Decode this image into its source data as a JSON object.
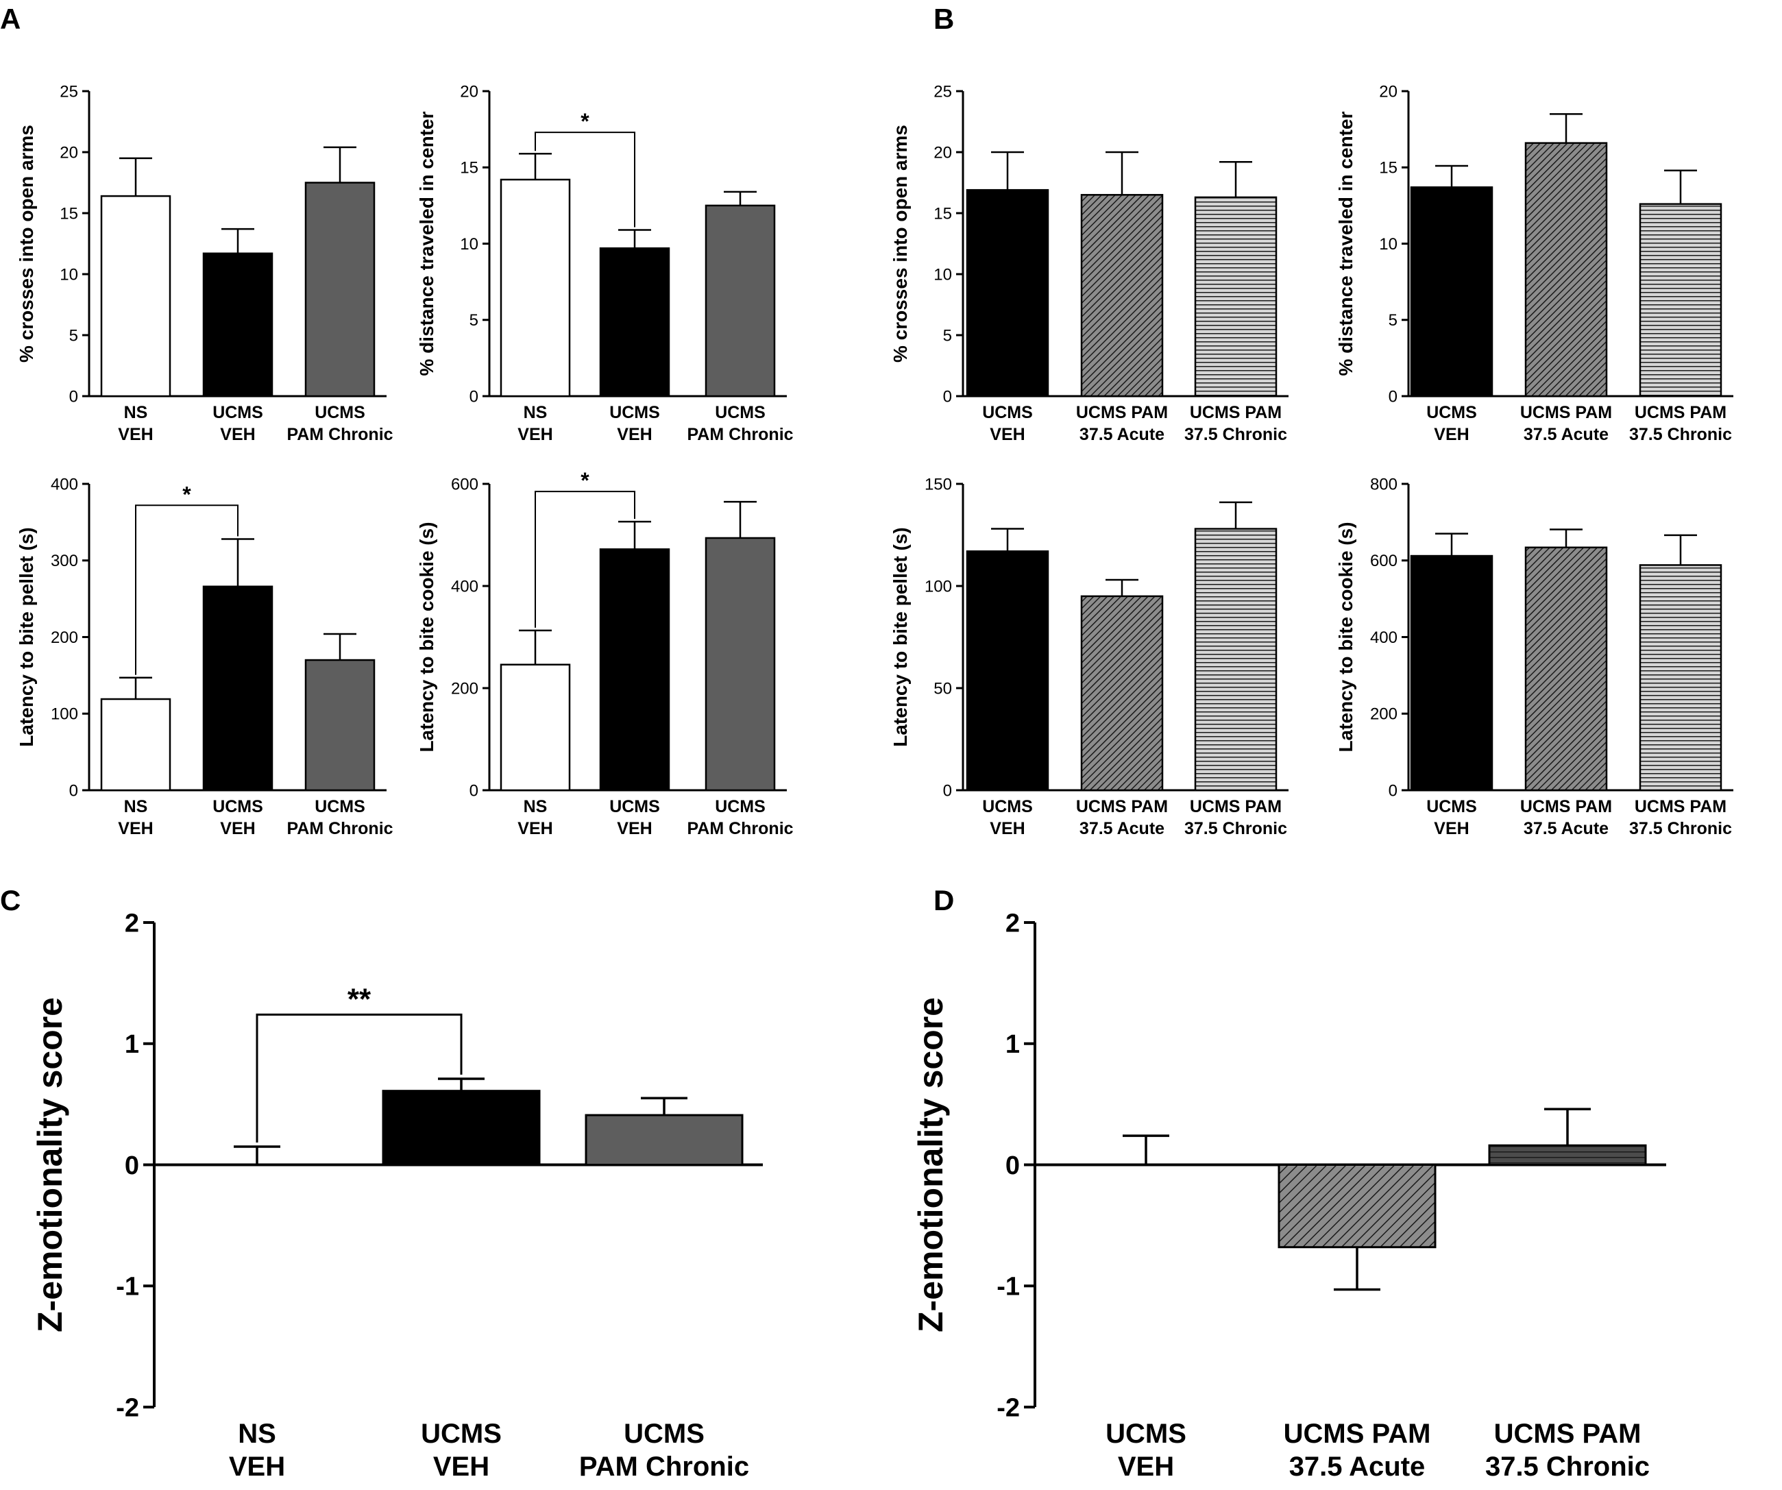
{
  "figure": {
    "panel_labels": [
      "A",
      "B",
      "C",
      "D"
    ]
  },
  "colors": {
    "ns_bar": "#ffffff",
    "ucms_veh_bar": "#000000",
    "chronic_gray_bar": "#5e5e5e",
    "acute_hatch_bg": "#8c8c8c",
    "acute_hatch_line": "#1a1a1a",
    "chronic_hatch_bg": "#d6d6d6",
    "chronic_hatch_line": "#1a1a1a",
    "hatch_bar_fill": "#4c4c4c"
  },
  "chart_data": [
    {
      "id": "A1",
      "panel": "A",
      "type": "bar",
      "ylabel": "% crosses into open arms",
      "ylim": [
        0,
        25
      ],
      "yticks": [
        0,
        5,
        10,
        15,
        20,
        25
      ],
      "categories": [
        [
          "NS",
          "VEH"
        ],
        [
          "UCMS",
          "VEH"
        ],
        [
          "UCMS",
          "PAM Chronic"
        ]
      ],
      "values": [
        16.4,
        11.7,
        17.5
      ],
      "errors": [
        3.1,
        2.0,
        2.9
      ],
      "styles": [
        "white",
        "black",
        "gray"
      ],
      "significance": []
    },
    {
      "id": "A2",
      "panel": "A",
      "type": "bar",
      "ylabel": "% distance traveled in center",
      "ylim": [
        0,
        20
      ],
      "yticks": [
        0,
        5,
        10,
        15,
        20
      ],
      "categories": [
        [
          "NS",
          "VEH"
        ],
        [
          "UCMS",
          "VEH"
        ],
        [
          "UCMS",
          "PAM Chronic"
        ]
      ],
      "values": [
        14.2,
        9.7,
        12.5
      ],
      "errors": [
        1.7,
        1.2,
        0.9
      ],
      "styles": [
        "white",
        "black",
        "gray"
      ],
      "significance": [
        {
          "from": 0,
          "to": 1,
          "label": "*",
          "y": 17.3
        }
      ]
    },
    {
      "id": "A3",
      "panel": "A",
      "type": "bar",
      "ylabel": "Latency to bite pellet  (s)",
      "ylim": [
        0,
        400
      ],
      "yticks": [
        0,
        100,
        200,
        300,
        400
      ],
      "categories": [
        [
          "NS",
          "VEH"
        ],
        [
          "UCMS",
          "VEH"
        ],
        [
          "UCMS",
          "PAM Chronic"
        ]
      ],
      "values": [
        119,
        266,
        170
      ],
      "errors": [
        28,
        62,
        34
      ],
      "styles": [
        "white",
        "black",
        "gray"
      ],
      "significance": [
        {
          "from": 0,
          "to": 1,
          "label": "*",
          "y": 372
        }
      ]
    },
    {
      "id": "A4",
      "panel": "A",
      "type": "bar",
      "ylabel": "Latency to bite cookie  (s)",
      "ylim": [
        0,
        600
      ],
      "yticks": [
        0,
        200,
        400,
        600
      ],
      "categories": [
        [
          "NS",
          "VEH"
        ],
        [
          "UCMS",
          "VEH"
        ],
        [
          "UCMS",
          "PAM Chronic"
        ]
      ],
      "values": [
        246,
        472,
        494
      ],
      "errors": [
        67,
        54,
        71
      ],
      "styles": [
        "white",
        "black",
        "gray"
      ],
      "significance": [
        {
          "from": 0,
          "to": 1,
          "label": "*",
          "y": 585
        }
      ]
    },
    {
      "id": "B1",
      "panel": "B",
      "type": "bar",
      "ylabel": "% crosses into open arms",
      "ylim": [
        0,
        25
      ],
      "yticks": [
        0,
        5,
        10,
        15,
        20,
        25
      ],
      "categories": [
        [
          "UCMS",
          "VEH"
        ],
        [
          "UCMS PAM",
          "37.5 Acute"
        ],
        [
          "UCMS PAM",
          "37.5 Chronic"
        ]
      ],
      "values": [
        16.9,
        16.5,
        16.3
      ],
      "errors": [
        3.1,
        3.5,
        2.9
      ],
      "styles": [
        "black",
        "diag",
        "horiz"
      ],
      "significance": []
    },
    {
      "id": "B2",
      "panel": "B",
      "type": "bar",
      "ylabel": "% distance traveled in center",
      "ylim": [
        0,
        20
      ],
      "yticks": [
        0,
        5,
        10,
        15,
        20
      ],
      "categories": [
        [
          "UCMS",
          "VEH"
        ],
        [
          "UCMS PAM",
          "37.5 Acute"
        ],
        [
          "UCMS PAM",
          "37.5 Chronic"
        ]
      ],
      "values": [
        13.7,
        16.6,
        12.6
      ],
      "errors": [
        1.4,
        1.9,
        2.2
      ],
      "styles": [
        "black",
        "diag",
        "horiz"
      ],
      "significance": []
    },
    {
      "id": "B3",
      "panel": "B",
      "type": "bar",
      "ylabel": "Latency to bite pellet (s)",
      "ylim": [
        0,
        150
      ],
      "yticks": [
        0,
        50,
        100,
        150
      ],
      "categories": [
        [
          "UCMS",
          "VEH"
        ],
        [
          "UCMS PAM",
          "37.5 Acute"
        ],
        [
          "UCMS PAM",
          "37.5 Chronic"
        ]
      ],
      "values": [
        117,
        95,
        128
      ],
      "errors": [
        11,
        8,
        13
      ],
      "styles": [
        "black",
        "diag",
        "horiz"
      ],
      "significance": []
    },
    {
      "id": "B4",
      "panel": "B",
      "type": "bar",
      "ylabel": "Latency to bite cookie (s)",
      "ylim": [
        0,
        800
      ],
      "yticks": [
        0,
        200,
        400,
        600,
        800
      ],
      "categories": [
        [
          "UCMS",
          "VEH"
        ],
        [
          "UCMS PAM",
          "37.5 Acute"
        ],
        [
          "UCMS PAM",
          "37.5 Chronic"
        ]
      ],
      "values": [
        612,
        634,
        588
      ],
      "errors": [
        58,
        47,
        78
      ],
      "styles": [
        "black",
        "diag",
        "horiz"
      ],
      "significance": []
    },
    {
      "id": "C",
      "panel": "C",
      "type": "bar",
      "ylabel": "Z-emotionality score",
      "ylim": [
        -2,
        2
      ],
      "yticks": [
        -2,
        -1,
        0,
        1,
        2
      ],
      "categories": [
        [
          "NS",
          "VEH"
        ],
        [
          "UCMS",
          "VEH"
        ],
        [
          "UCMS",
          "PAM Chronic"
        ]
      ],
      "values": [
        0.0,
        0.61,
        0.41
      ],
      "errors": [
        0.15,
        0.1,
        0.14
      ],
      "styles": [
        "white",
        "black",
        "gray"
      ],
      "significance": [
        {
          "from": 0,
          "to": 1,
          "label": "**",
          "y": 1.24
        }
      ]
    },
    {
      "id": "D",
      "panel": "D",
      "type": "bar",
      "ylabel": "Z-emotionality score",
      "ylim": [
        -2,
        2
      ],
      "yticks": [
        -2,
        -1,
        0,
        1,
        2
      ],
      "categories": [
        [
          "UCMS",
          "VEH"
        ],
        [
          "UCMS PAM",
          "37.5 Acute"
        ],
        [
          "UCMS PAM",
          "37.5 Chronic"
        ]
      ],
      "values": [
        0.0,
        -0.68,
        0.16
      ],
      "errors": [
        0.24,
        0.35,
        0.3
      ],
      "styles": [
        "black",
        "diag",
        "horiz"
      ],
      "significance": []
    }
  ]
}
